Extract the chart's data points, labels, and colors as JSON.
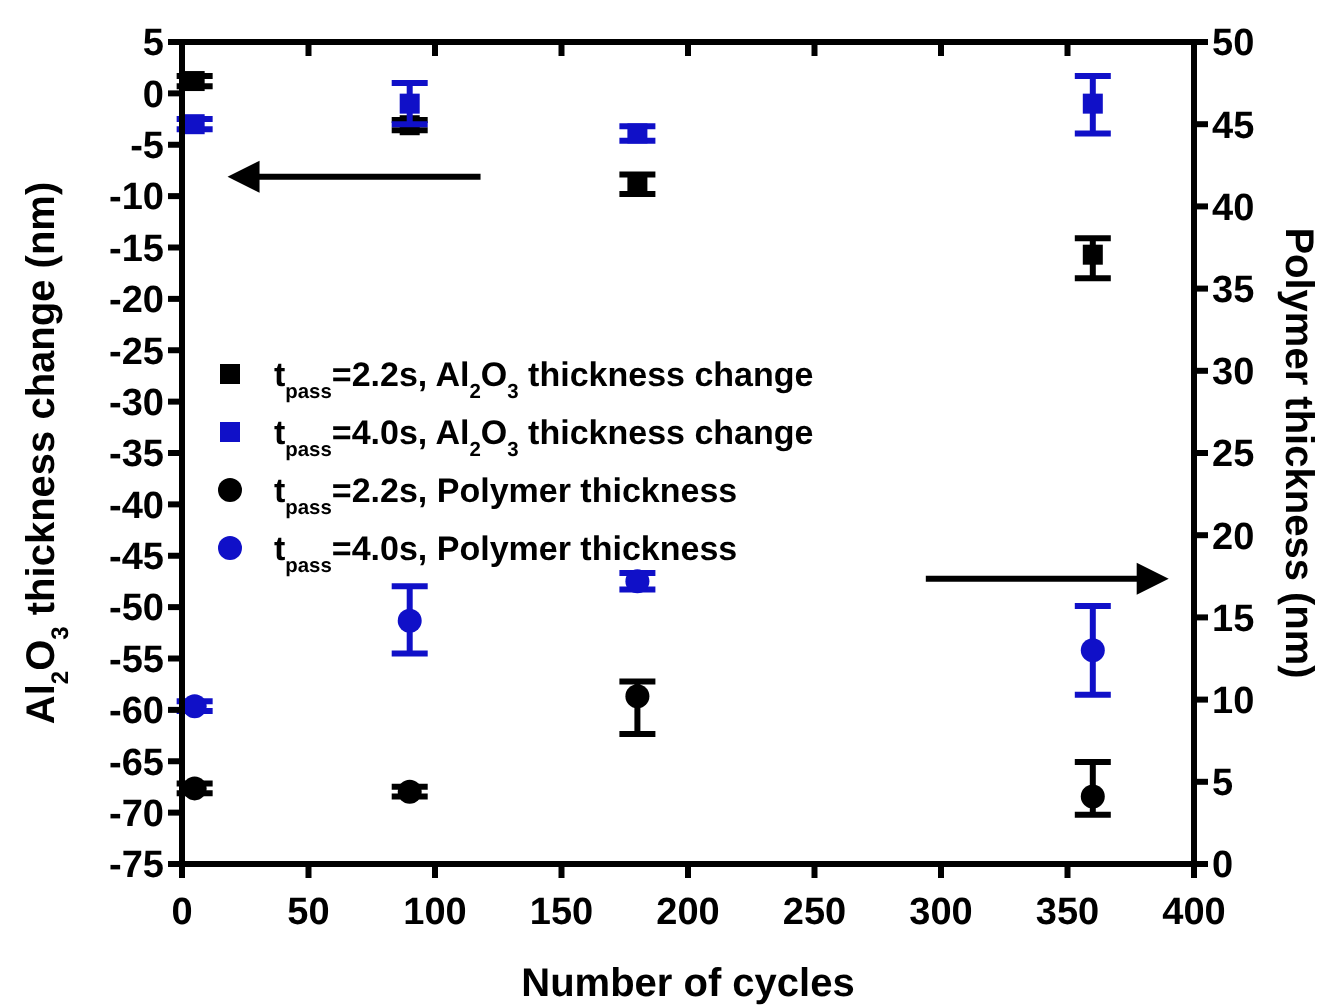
{
  "chart_data": {
    "type": "scatter",
    "xlabel": "Number of cycles",
    "ylabel": "Al$_{2}$O$_{3}$ thickness change (nm)",
    "y2label": "Polymer thickness (nm)",
    "x": [
      5,
      90,
      180,
      360
    ],
    "xlim": [
      0,
      400
    ],
    "xticks": [
      0,
      50,
      100,
      150,
      200,
      250,
      300,
      350,
      400
    ],
    "ylim": [
      -75,
      5
    ],
    "yticks": [
      -75,
      -70,
      -65,
      -60,
      -55,
      -50,
      -45,
      -40,
      -35,
      -30,
      -25,
      -20,
      -15,
      -10,
      -5,
      0,
      5
    ],
    "y2lim": [
      0,
      50
    ],
    "y2ticks": [
      0,
      5,
      10,
      15,
      20,
      25,
      30,
      35,
      40,
      45,
      50
    ],
    "legend": "left",
    "series": [
      {
        "name": "t$_{pass}$=2.2s, Al$_{2}$O$_{3}$ thickness change",
        "color": "#000000",
        "marker": "square",
        "values": [
          1.2,
          -3.1,
          -8.8,
          -15.7
        ],
        "errors": [
          0.5,
          0.5,
          [
            -9.8,
            -7.9
          ],
          [
            -18,
            -14.1
          ]
        ]
      },
      {
        "name": "t$_{pass}$=4.0s, Al$_{2}$O$_{3}$ thickness change",
        "color": "#1010c8",
        "marker": "square",
        "values": [
          -3,
          -1,
          -3.9,
          -1
        ],
        "errors": [
          0.5,
          [
            -3,
            1
          ],
          0.7,
          [
            -3.9,
            1.7
          ]
        ]
      },
      {
        "name": "t$_{pass}$=2.2s, Polymer thickness",
        "color": "#000000",
        "marker": "circle",
        "axis": "y2",
        "values": [
          4.6,
          4.4,
          10.2,
          4.1
        ],
        "errors": [
          0.3,
          0.3,
          [
            7.9,
            11.1
          ],
          [
            3,
            6.2
          ]
        ]
      },
      {
        "name": "t$_{pass}$=4.0s, Polymer thickness",
        "color": "#1010c8",
        "marker": "circle",
        "axis": "y2",
        "values": [
          9.6,
          14.8,
          17.2,
          13
        ],
        "errors": [
          0.3,
          [
            12.8,
            16.9
          ],
          0.5,
          [
            10.3,
            15.7
          ]
        ]
      }
    ]
  }
}
